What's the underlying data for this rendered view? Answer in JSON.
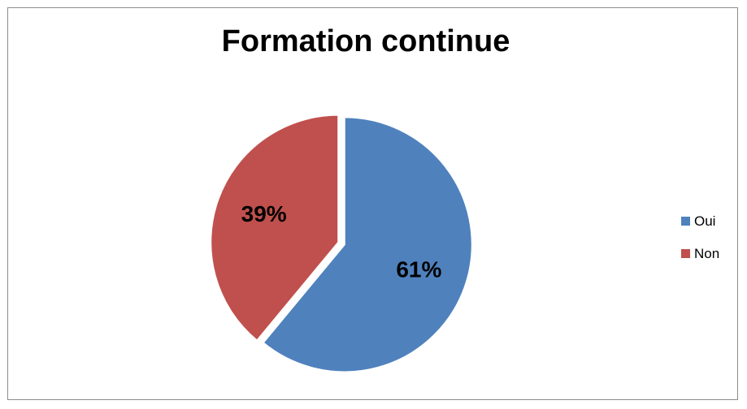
{
  "chart_data": {
    "type": "pie",
    "title": "Formation continue",
    "categories": [
      "Oui",
      "Non"
    ],
    "values": [
      61,
      39
    ],
    "labels": [
      "61%",
      "39%"
    ],
    "colors": [
      "#4f81bd",
      "#c0504d"
    ],
    "legend_position": "right"
  }
}
